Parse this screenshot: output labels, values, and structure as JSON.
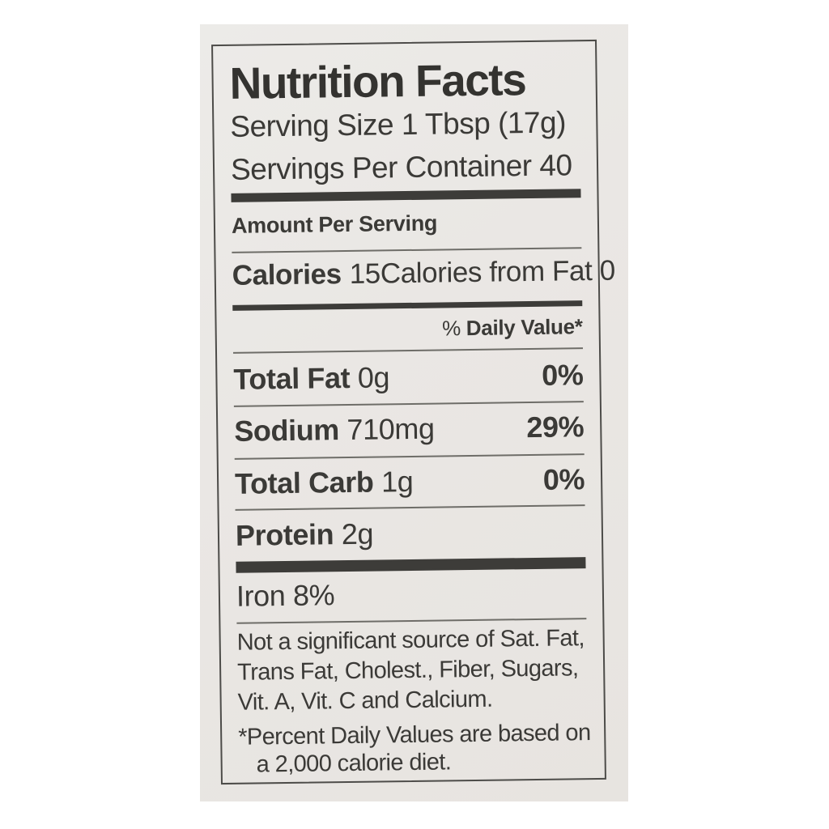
{
  "theme": {
    "photo_bg": "#eae7e4",
    "text_color": "#3b3a37",
    "border_color": "#4d4c49",
    "bar_color": "#3d3c39"
  },
  "label": {
    "title": "Nutrition Facts",
    "serving_size": "Serving Size 1 Tbsp (17g)",
    "servings_per_container": "Servings Per Container 40",
    "amount_per_serving": "Amount Per Serving",
    "calories": {
      "name": "Calories",
      "value": "15",
      "from_fat": "Calories from Fat 0"
    },
    "daily_value_header": {
      "prefix": "% ",
      "label": "Daily Value*"
    },
    "nutrients": [
      {
        "name": "Total Fat",
        "amount": "0g",
        "dv": "0%"
      },
      {
        "name": "Sodium",
        "amount": "710mg",
        "dv": "29%"
      },
      {
        "name": "Total Carb",
        "amount": "1g",
        "dv": "0%"
      },
      {
        "name": "Protein",
        "amount": "2g",
        "dv": ""
      }
    ],
    "iron_line": "Iron 8%",
    "not_significant_lines": [
      "Not a significant source of Sat. Fat,",
      "Trans Fat, Cholest., Fiber, Sugars,",
      "Vit. A, Vit. C and Calcium."
    ],
    "daily_values_note_lines": [
      "*Percent Daily Values are based on",
      "a 2,000 calorie diet."
    ]
  }
}
